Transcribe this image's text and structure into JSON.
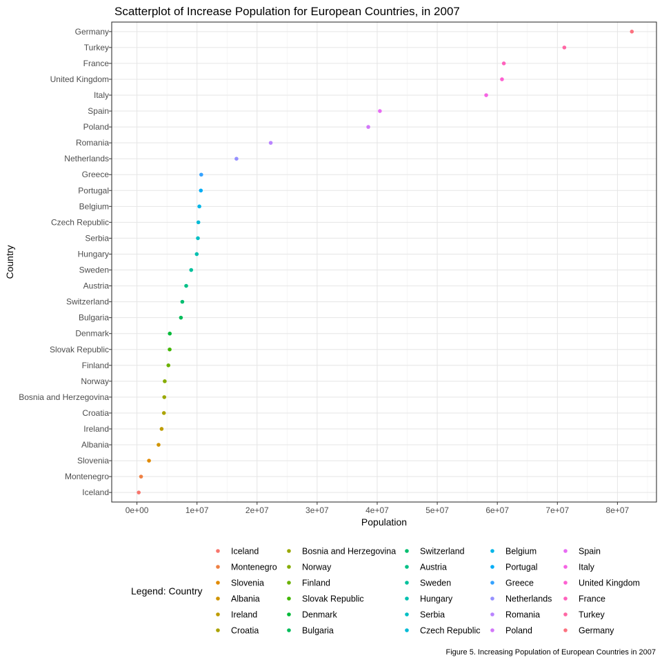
{
  "chart_data": {
    "type": "scatter",
    "title": "Scatterplot of Increase Population for European Countries, in 2007",
    "xlabel": "Population",
    "ylabel": "Country",
    "xlim": [
      -4200000,
      86500000
    ],
    "x_ticks": [
      0,
      10000000,
      20000000,
      30000000,
      40000000,
      50000000,
      60000000,
      70000000,
      80000000
    ],
    "x_tick_labels": [
      "0e+00",
      "1e+07",
      "2e+07",
      "3e+07",
      "4e+07",
      "5e+07",
      "6e+07",
      "7e+07",
      "8e+07"
    ],
    "grid": true,
    "legend_position": "bottom",
    "legend_title": "Legend: Country",
    "caption": "Figure 5. Increasing Population of European Countries in 2007",
    "points": [
      {
        "country": "Iceland",
        "x": 301931,
        "color": "#F8766D"
      },
      {
        "country": "Montenegro",
        "x": 684736,
        "color": "#EE8043"
      },
      {
        "country": "Slovenia",
        "x": 2009245,
        "color": "#E18A00"
      },
      {
        "country": "Albania",
        "x": 3600523,
        "color": "#D09400"
      },
      {
        "country": "Ireland",
        "x": 4109086,
        "color": "#BE9C00"
      },
      {
        "country": "Croatia",
        "x": 4493312,
        "color": "#ABA300"
      },
      {
        "country": "Bosnia and Herzegovina",
        "x": 4552198,
        "color": "#9AA800"
      },
      {
        "country": "Norway",
        "x": 4627926,
        "color": "#86AC00"
      },
      {
        "country": "Finland",
        "x": 5238460,
        "color": "#6BB100"
      },
      {
        "country": "Slovak Republic",
        "x": 5447502,
        "color": "#40B600"
      },
      {
        "country": "Denmark",
        "x": 5468120,
        "color": "#00BA38"
      },
      {
        "country": "Bulgaria",
        "x": 7322858,
        "color": "#00BC59"
      },
      {
        "country": "Switzerland",
        "x": 7554661,
        "color": "#00BE70"
      },
      {
        "country": "Austria",
        "x": 8199783,
        "color": "#00C086"
      },
      {
        "country": "Sweden",
        "x": 9031088,
        "color": "#00C19C"
      },
      {
        "country": "Hungary",
        "x": 9956108,
        "color": "#00C0B0"
      },
      {
        "country": "Serbia",
        "x": 10150265,
        "color": "#00BFC4"
      },
      {
        "country": "Czech Republic",
        "x": 10228744,
        "color": "#00BBD6"
      },
      {
        "country": "Belgium",
        "x": 10392226,
        "color": "#00B5E8"
      },
      {
        "country": "Portugal",
        "x": 10642836,
        "color": "#00ADF6"
      },
      {
        "country": "Greece",
        "x": 10706290,
        "color": "#35A2FF"
      },
      {
        "country": "Netherlands",
        "x": 16570613,
        "color": "#9590FF"
      },
      {
        "country": "Romania",
        "x": 22276056,
        "color": "#B983FF"
      },
      {
        "country": "Poland",
        "x": 38518241,
        "color": "#D278F9"
      },
      {
        "country": "Spain",
        "x": 40448191,
        "color": "#E76BF3"
      },
      {
        "country": "Italy",
        "x": 58147733,
        "color": "#F564E3"
      },
      {
        "country": "United Kingdom",
        "x": 60776238,
        "color": "#FD61D1"
      },
      {
        "country": "France",
        "x": 61083916,
        "color": "#FF61BC"
      },
      {
        "country": "Turkey",
        "x": 71158647,
        "color": "#FF67A4"
      },
      {
        "country": "Germany",
        "x": 82400996,
        "color": "#FC717F"
      }
    ]
  }
}
